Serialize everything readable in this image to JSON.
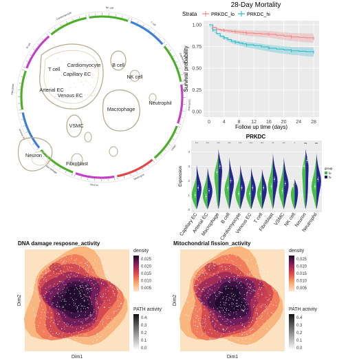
{
  "circos": {
    "sectors": [
      "NK cell",
      "T cell",
      "Capillary EC",
      "Arterial EC",
      "VSMC",
      "Neutrophil",
      "Neuron",
      "Macrophage",
      "Venous EC",
      "Fibroblast",
      "B cell",
      "Cardiomyocyte"
    ],
    "clusters": [
      "T cell",
      "Cardiomyocyte",
      "Capillary EC",
      "Arterial EC",
      "Venous EC",
      "B cell",
      "NK cell",
      "Macrophage",
      "Neutrophil",
      "VSMC",
      "Fibroblast",
      "Neuron"
    ],
    "colors": {
      "green": "#4caf2a",
      "blue": "#3b7fd6",
      "magenta": "#c23fc6",
      "red": "#e04848"
    }
  },
  "km": {
    "title": "28-Day Mortality",
    "strata_label": "Strata",
    "xlabel": "Follow up time (days)",
    "ylabel": "Survival probability",
    "x_ticks": [
      "0",
      "4",
      "8",
      "12",
      "16",
      "20",
      "24",
      "28"
    ],
    "y_ticks": [
      "0.00",
      "0.25",
      "0.50",
      "0.75",
      "1.00"
    ]
  },
  "violin": {
    "title": "PRKDC",
    "ylabel": "Expression",
    "categories": [
      "Capillary EC",
      "Arterial EC",
      "Macrophage",
      "B cell",
      "Cardiomyocyte",
      "Venous EC",
      "T cell",
      "Fibroblast",
      "VSMC",
      "NK cell",
      "Neuron",
      "Neutrophil"
    ],
    "signif": [
      "***",
      "***",
      "***",
      "***",
      "***",
      "***",
      "***",
      "**",
      "***",
      "*",
      "ns",
      "ns"
    ],
    "legend_title": "group",
    "legend_items": [
      "lo",
      "hi"
    ]
  },
  "density_panels": [
    {
      "title": "DNA damage resposne_activity",
      "xlabel": "Dim1",
      "ylabel": "Dim2",
      "density_title": "density",
      "density_ticks": [
        "0.025",
        "0.020",
        "0.015",
        "0.010",
        "0.005"
      ],
      "path_title": "PATH activity",
      "path_ticks": [
        "0.4",
        "0.3",
        "0.2",
        "0.1",
        "0.0"
      ]
    },
    {
      "title": "Mitochondrial fission_activity",
      "xlabel": "Dim1",
      "ylabel": "Dim2",
      "density_title": "density",
      "density_ticks": [
        "0.025",
        "0.020",
        "0.015",
        "0.010",
        "0.005"
      ],
      "path_title": "PATH activity",
      "path_ticks": [
        "0.4",
        "0.3",
        "0.2",
        "0.1",
        "0.0"
      ]
    }
  ],
  "chart_data": [
    {
      "type": "line",
      "title": "28-Day Mortality",
      "xlabel": "Follow up time (days)",
      "ylabel": "Survival probability",
      "xlim": [
        0,
        28
      ],
      "ylim": [
        0,
        1
      ],
      "legend_title": "Strata",
      "legend_placement": "top",
      "series": [
        {
          "name": "PRKDC_lo",
          "color": "#f08080",
          "x": [
            0,
            1,
            2,
            3,
            4,
            5,
            6,
            7,
            8,
            9,
            10,
            12,
            14,
            16,
            18,
            20,
            22,
            24,
            26,
            28
          ],
          "y": [
            1.0,
            0.97,
            0.95,
            0.94,
            0.935,
            0.93,
            0.925,
            0.92,
            0.915,
            0.91,
            0.905,
            0.9,
            0.895,
            0.89,
            0.88,
            0.87,
            0.86,
            0.855,
            0.85,
            0.845
          ]
        },
        {
          "name": "PRKDC_hi",
          "color": "#22b8c8",
          "x": [
            0,
            1,
            2,
            3,
            4,
            5,
            6,
            7,
            8,
            9,
            10,
            12,
            14,
            16,
            18,
            20,
            22,
            24,
            26,
            28
          ],
          "y": [
            1.0,
            0.94,
            0.9,
            0.87,
            0.85,
            0.83,
            0.81,
            0.8,
            0.79,
            0.78,
            0.77,
            0.76,
            0.745,
            0.73,
            0.72,
            0.71,
            0.7,
            0.695,
            0.69,
            0.685
          ]
        }
      ]
    },
    {
      "type": "violin",
      "title": "PRKDC",
      "ylabel": "Expression",
      "categories": [
        "Capillary EC",
        "Arterial EC",
        "Macrophage",
        "B cell",
        "Cardiomyocyte",
        "Venous EC",
        "T cell",
        "Fibroblast",
        "VSMC",
        "NK cell",
        "Neuron",
        "Neutrophil"
      ],
      "series": [
        {
          "name": "lo",
          "color": "#3dbb3d",
          "max": [
            2.4,
            2.6,
            3.9,
            2.9,
            2.6,
            2.4,
            2.5,
            3.6,
            3.3,
            1.9,
            3.9,
            3.7
          ],
          "median": [
            1.0,
            0.9,
            2.6,
            1.5,
            1.1,
            1.1,
            1.1,
            1.6,
            1.3,
            1.6,
            3.0,
            1.6
          ]
        },
        {
          "name": "hi",
          "color": "#1a1a8c",
          "max": [
            3.1,
            2.9,
            4.2,
            3.6,
            3.1,
            2.9,
            2.8,
            3.9,
            3.6,
            2.1,
            4.2,
            3.9
          ],
          "median": [
            1.5,
            1.3,
            3.0,
            2.0,
            1.5,
            1.5,
            1.5,
            2.1,
            1.8,
            1.9,
            3.4,
            2.1
          ]
        }
      ],
      "ylim": [
        0,
        4.5
      ]
    },
    {
      "type": "heatmap",
      "title": "DNA damage resposne_activity",
      "xlabel": "Dim1",
      "ylabel": "Dim2",
      "density_range": [
        0.003,
        0.027
      ],
      "path_activity_range": [
        0.0,
        0.45
      ]
    },
    {
      "type": "heatmap",
      "title": "Mitochondrial fission_activity",
      "xlabel": "Dim1",
      "ylabel": "Dim2",
      "density_range": [
        0.003,
        0.027
      ],
      "path_activity_range": [
        0.0,
        0.45
      ]
    }
  ]
}
